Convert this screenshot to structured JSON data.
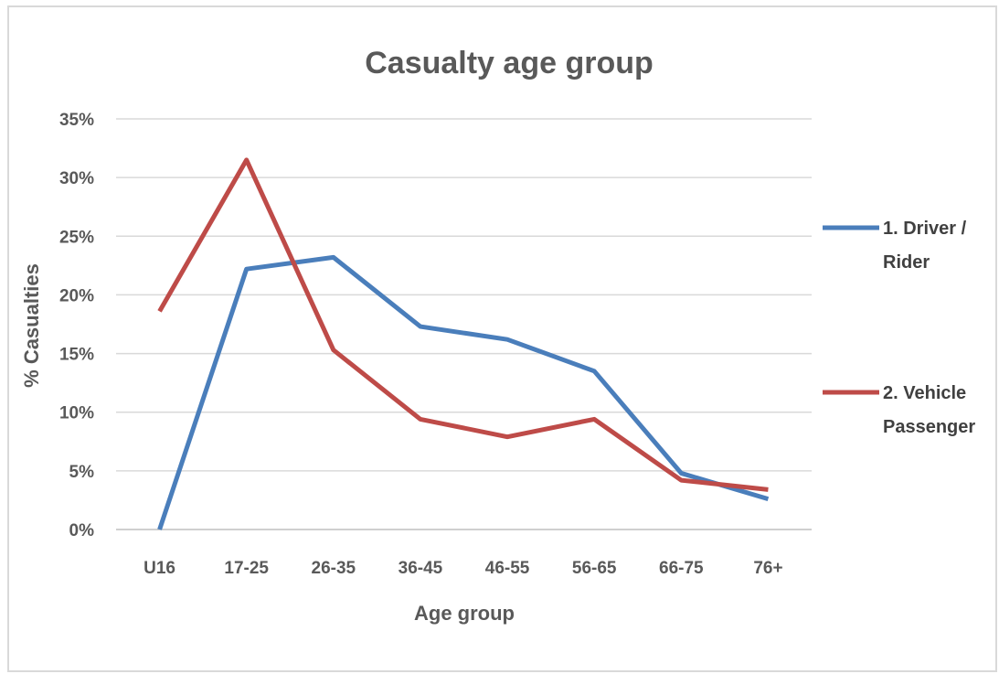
{
  "chart_data": {
    "type": "line",
    "title": "Casualty age group",
    "xlabel": "Age group",
    "ylabel": "% Casualties",
    "categories": [
      "U16",
      "17-25",
      "26-35",
      "36-45",
      "46-55",
      "56-65",
      "66-75",
      "76+"
    ],
    "ylim": [
      0,
      35
    ],
    "yticks": [
      "0%",
      "5%",
      "10%",
      "15%",
      "20%",
      "25%",
      "30%",
      "35%"
    ],
    "grid": true,
    "legend_position": "right",
    "series": [
      {
        "name": "1. Driver / Rider",
        "legend_lines": [
          "1. Driver /",
          "Rider"
        ],
        "color": "#4a7ebb",
        "values": [
          0.0,
          22.2,
          23.2,
          17.3,
          16.2,
          13.5,
          4.8,
          2.6
        ]
      },
      {
        "name": "2. Vehicle Passenger",
        "legend_lines": [
          "2. Vehicle",
          "Passenger"
        ],
        "color": "#be4b48",
        "values": [
          18.6,
          31.5,
          15.3,
          9.4,
          7.9,
          9.4,
          4.2,
          3.4
        ]
      }
    ]
  }
}
